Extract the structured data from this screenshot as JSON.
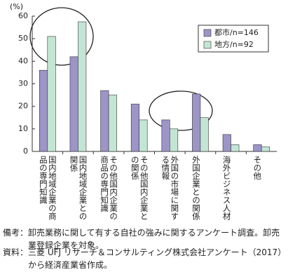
{
  "chart_data": {
    "type": "bar",
    "y_label": "(%)",
    "categories": [
      "国内地域企業の商品の専門知識",
      "国内地域企業との関係",
      "その他国内企業の商品の専門知識",
      "その他国内企業との関係",
      "外国の市場に関する情報",
      "外国企業との関係",
      "海外ビジネス人材",
      "その他"
    ],
    "series": [
      {
        "name": "都市/n=146",
        "color": "#9d94c8",
        "values": [
          36,
          42,
          27,
          21,
          14,
          25.5,
          7.5,
          3
        ]
      },
      {
        "name": "地方/n=92",
        "color": "#c3e6d4",
        "values": [
          51,
          57.5,
          25,
          14,
          10,
          15,
          3,
          2
        ]
      }
    ],
    "ylim": [
      0,
      60
    ],
    "yticks": [
      0,
      10,
      20,
      30,
      40,
      50,
      60
    ],
    "grid": false,
    "legend": "top-right"
  },
  "notes": [
    "備考：卸売業務に関して有する自社の強みに関するアンケート調査。卸売業登録企業を対象。",
    "資料：三菱 UFJ リサーチ＆コンサルティング株式会社アンケート（2017）から経済産業省作成。"
  ]
}
